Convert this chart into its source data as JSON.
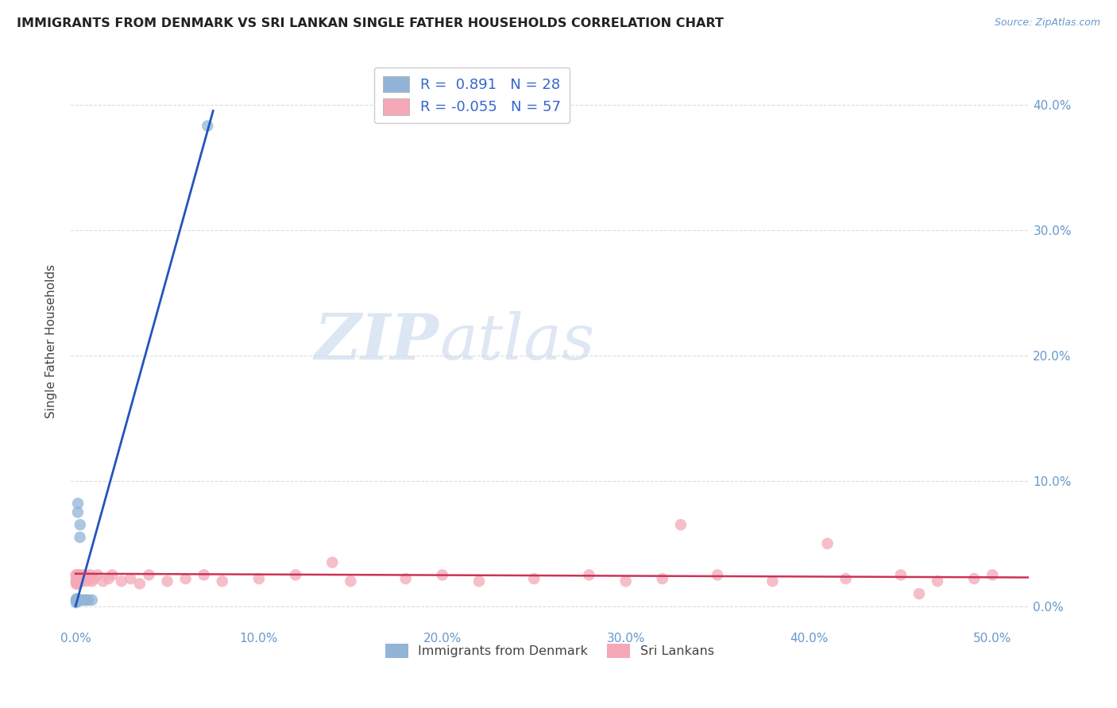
{
  "title": "IMMIGRANTS FROM DENMARK VS SRI LANKAN SINGLE FATHER HOUSEHOLDS CORRELATION CHART",
  "source": "Source: ZipAtlas.com",
  "ylabel": "Single Father Households",
  "xlim": [
    -0.003,
    0.52
  ],
  "ylim": [
    -0.018,
    0.44
  ],
  "x_ticks": [
    0.0,
    0.1,
    0.2,
    0.3,
    0.4,
    0.5
  ],
  "y_ticks": [
    0.0,
    0.1,
    0.2,
    0.3,
    0.4
  ],
  "legend_labels": [
    "Immigrants from Denmark",
    "Sri Lankans"
  ],
  "r_denmark": 0.891,
  "n_denmark": 28,
  "r_srilanka": -0.055,
  "n_srilanka": 57,
  "color_denmark": "#92B4D7",
  "color_srilanka": "#F4A8B8",
  "line_color_denmark": "#2255BB",
  "line_color_srilanka": "#CC3355",
  "background_color": "#FFFFFF",
  "grid_color": "#DDDDDD",
  "denmark_x": [
    0.0003,
    0.0004,
    0.0005,
    0.0006,
    0.0006,
    0.0007,
    0.0008,
    0.0009,
    0.001,
    0.001,
    0.0012,
    0.0013,
    0.0014,
    0.0015,
    0.0016,
    0.0017,
    0.0018,
    0.002,
    0.0022,
    0.0024,
    0.0025,
    0.003,
    0.004,
    0.005,
    0.006,
    0.007,
    0.009,
    0.072
  ],
  "denmark_y": [
    0.005,
    0.003,
    0.005,
    0.004,
    0.006,
    0.005,
    0.005,
    0.004,
    0.005,
    0.005,
    0.075,
    0.082,
    0.005,
    0.005,
    0.005,
    0.005,
    0.005,
    0.005,
    0.005,
    0.055,
    0.065,
    0.005,
    0.005,
    0.005,
    0.005,
    0.005,
    0.005,
    0.383
  ],
  "srilanka_x": [
    0.0002,
    0.0003,
    0.0004,
    0.0005,
    0.0006,
    0.0007,
    0.0008,
    0.0009,
    0.001,
    0.0012,
    0.0014,
    0.0016,
    0.0018,
    0.002,
    0.0025,
    0.003,
    0.0035,
    0.004,
    0.005,
    0.006,
    0.007,
    0.008,
    0.009,
    0.01,
    0.012,
    0.015,
    0.018,
    0.02,
    0.025,
    0.03,
    0.035,
    0.04,
    0.05,
    0.06,
    0.07,
    0.08,
    0.1,
    0.12,
    0.15,
    0.18,
    0.2,
    0.22,
    0.25,
    0.28,
    0.3,
    0.32,
    0.35,
    0.38,
    0.42,
    0.45,
    0.47,
    0.49,
    0.5,
    0.14,
    0.33,
    0.41,
    0.46
  ],
  "srilanka_y": [
    0.025,
    0.02,
    0.018,
    0.022,
    0.02,
    0.018,
    0.025,
    0.02,
    0.022,
    0.02,
    0.018,
    0.022,
    0.025,
    0.02,
    0.022,
    0.025,
    0.02,
    0.022,
    0.025,
    0.02,
    0.022,
    0.025,
    0.02,
    0.022,
    0.025,
    0.02,
    0.022,
    0.025,
    0.02,
    0.022,
    0.018,
    0.025,
    0.02,
    0.022,
    0.025,
    0.02,
    0.022,
    0.025,
    0.02,
    0.022,
    0.025,
    0.02,
    0.022,
    0.025,
    0.02,
    0.022,
    0.025,
    0.02,
    0.022,
    0.025,
    0.02,
    0.022,
    0.025,
    0.035,
    0.065,
    0.05,
    0.01
  ],
  "dk_line_x": [
    0.0,
    0.075
  ],
  "dk_line_y": [
    0.0,
    0.395
  ],
  "sl_line_x": [
    0.0,
    0.52
  ],
  "sl_line_y": [
    0.026,
    0.023
  ]
}
